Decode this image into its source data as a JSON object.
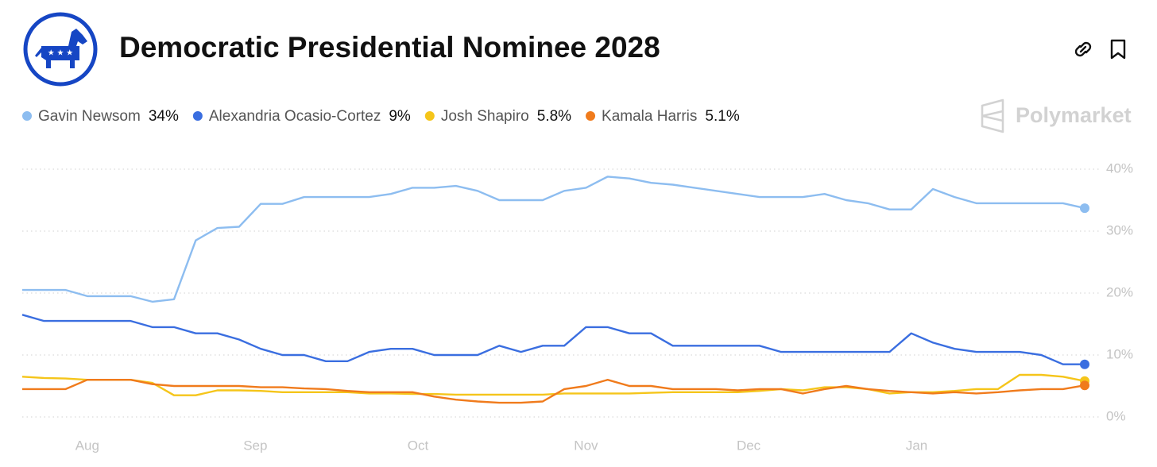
{
  "chart_data": {
    "type": "line",
    "title": "Democratic Presidential Nominee 2028",
    "brand": "Polymarket",
    "x": [
      0,
      4,
      8,
      12,
      16,
      20,
      24,
      28,
      32,
      36,
      40,
      44,
      48,
      52,
      56,
      60,
      64,
      68,
      72,
      76,
      80,
      84,
      88,
      92,
      96,
      100,
      104,
      108,
      112,
      116,
      120,
      124,
      128,
      132,
      136,
      140,
      144,
      148,
      152,
      156,
      160,
      164,
      168,
      172,
      176,
      180,
      184,
      188,
      192,
      196
    ],
    "xlim": [
      0,
      196
    ],
    "xticks": [
      {
        "value": 12,
        "label": "Aug"
      },
      {
        "value": 43,
        "label": "Sep"
      },
      {
        "value": 73,
        "label": "Oct"
      },
      {
        "value": 104,
        "label": "Nov"
      },
      {
        "value": 134,
        "label": "Dec"
      },
      {
        "value": 165,
        "label": "Jan"
      }
    ],
    "ylim": [
      0,
      40
    ],
    "yticks": [
      {
        "value": 0,
        "label": "0%"
      },
      {
        "value": 10,
        "label": "10%"
      },
      {
        "value": 20,
        "label": "20%"
      },
      {
        "value": 30,
        "label": "30%"
      },
      {
        "value": 40,
        "label": "40%"
      }
    ],
    "grid": true,
    "series": [
      {
        "name": "Gavin Newsom",
        "current_label": "34%",
        "color": "#8dbdf0",
        "values": [
          20.5,
          20.5,
          20.5,
          19.5,
          19.5,
          19.5,
          18.6,
          19.0,
          28.5,
          30.5,
          30.7,
          34.4,
          34.4,
          35.5,
          35.5,
          35.5,
          35.5,
          36.0,
          37.0,
          37.0,
          37.3,
          36.5,
          35.0,
          35.0,
          35.0,
          36.5,
          37.0,
          38.8,
          38.5,
          37.8,
          37.5,
          37.0,
          36.5,
          36.0,
          35.5,
          35.5,
          35.5,
          36.0,
          35.0,
          34.5,
          33.5,
          33.5,
          36.8,
          35.5,
          34.5,
          34.5,
          34.5,
          34.5,
          34.5,
          33.7
        ]
      },
      {
        "name": "Alexandria Ocasio-Cortez",
        "current_label": "9%",
        "color": "#3a6ee0",
        "values": [
          16.5,
          15.5,
          15.5,
          15.5,
          15.5,
          15.5,
          14.5,
          14.5,
          13.5,
          13.5,
          12.5,
          11.0,
          10.0,
          10.0,
          9.0,
          9.0,
          10.5,
          11.0,
          11.0,
          10.0,
          10.0,
          10.0,
          11.5,
          10.5,
          11.5,
          11.5,
          14.5,
          14.5,
          13.5,
          13.5,
          11.5,
          11.5,
          11.5,
          11.5,
          11.5,
          10.5,
          10.5,
          10.5,
          10.5,
          10.5,
          10.5,
          13.5,
          12.0,
          11.0,
          10.5,
          10.5,
          10.5,
          10.0,
          8.5,
          8.5
        ]
      },
      {
        "name": "Josh Shapiro",
        "current_label": "5.8%",
        "color": "#f5c51a",
        "values": [
          6.5,
          6.3,
          6.2,
          6.0,
          6.0,
          6.0,
          5.5,
          3.5,
          3.5,
          4.3,
          4.3,
          4.2,
          4.0,
          4.0,
          4.0,
          4.0,
          3.8,
          3.8,
          3.7,
          3.7,
          3.6,
          3.6,
          3.6,
          3.6,
          3.6,
          3.8,
          3.8,
          3.8,
          3.8,
          3.9,
          4.0,
          4.0,
          4.0,
          4.0,
          4.2,
          4.5,
          4.3,
          4.8,
          4.8,
          4.5,
          3.8,
          4.0,
          4.0,
          4.2,
          4.5,
          4.5,
          6.8,
          6.8,
          6.5,
          5.8
        ]
      },
      {
        "name": "Kamala Harris",
        "current_label": "5.1%",
        "color": "#f07b1c",
        "values": [
          4.5,
          4.5,
          4.5,
          6.0,
          6.0,
          6.0,
          5.3,
          5.0,
          5.0,
          5.0,
          5.0,
          4.8,
          4.8,
          4.6,
          4.5,
          4.2,
          4.0,
          4.0,
          4.0,
          3.3,
          2.8,
          2.5,
          2.3,
          2.3,
          2.5,
          4.5,
          5.0,
          6.0,
          5.0,
          5.0,
          4.5,
          4.5,
          4.5,
          4.3,
          4.5,
          4.5,
          3.8,
          4.5,
          5.0,
          4.5,
          4.2,
          4.0,
          3.8,
          4.0,
          3.8,
          4.0,
          4.3,
          4.5,
          4.5,
          5.1
        ]
      }
    ]
  }
}
